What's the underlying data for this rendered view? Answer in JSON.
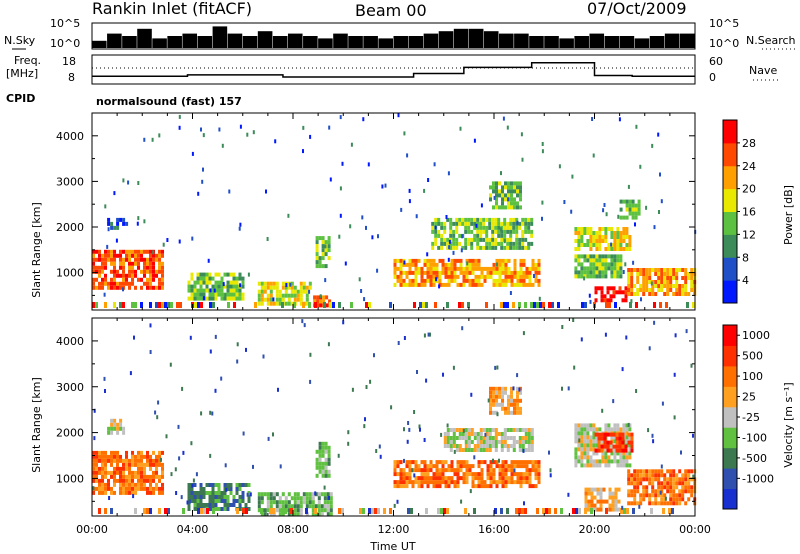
{
  "header": {
    "station": "Rankin Inlet (fitACF)",
    "beam": "Beam 00",
    "date": "07/Oct/2009"
  },
  "sky_panel": {
    "left_label": "N.Sky",
    "left_ticks": [
      "10^5",
      "10^0"
    ],
    "right_ticks": [
      "10^5",
      "10^0"
    ],
    "right_label": "N.Search",
    "values": [
      0.3,
      0.6,
      0.5,
      0.8,
      0.4,
      0.5,
      0.6,
      0.5,
      0.9,
      0.6,
      0.5,
      0.7,
      0.5,
      0.6,
      0.5,
      0.4,
      0.6,
      0.5,
      0.5,
      0.4,
      0.5,
      0.5,
      0.6,
      0.7,
      0.8,
      0.8,
      0.7,
      0.6,
      0.6,
      0.5,
      0.5,
      0.4,
      0.5,
      0.6,
      0.5,
      0.5,
      0.4,
      0.5,
      0.6,
      0.6
    ]
  },
  "freq_panel": {
    "left_label": "Freq.",
    "left_unit": "[MHz]",
    "left_ticks": [
      "18",
      "8"
    ],
    "right_ticks": [
      "60",
      "0"
    ],
    "right_label": "Nave",
    "cpid_label": "CPID",
    "cpid_text": "normalsound (fast) 157",
    "freq_steps": [
      [
        0,
        10.5
      ],
      [
        3.8,
        11.0
      ],
      [
        7.6,
        10.2
      ],
      [
        12.8,
        11.5
      ],
      [
        14.8,
        13.8
      ],
      [
        17.5,
        15.5
      ],
      [
        20,
        10.8
      ],
      [
        21.5,
        10.5
      ]
    ]
  },
  "chart_data": [
    {
      "type": "heatmap",
      "name": "power",
      "ylabel": "Slant Range [km]",
      "yticks": [
        "1000",
        "2000",
        "3000",
        "4000"
      ],
      "ylim": [
        180,
        4500
      ],
      "xlim": [
        0,
        24
      ],
      "colorbar_label": "Power [dB]",
      "colorbar_ticks": [
        "4",
        "8",
        "12",
        "16",
        "20",
        "24",
        "28"
      ],
      "colors": [
        "#0018ff",
        "#2050c8",
        "#3c8c5a",
        "#5cc040",
        "#e8e800",
        "#ffa000",
        "#ff4800",
        "#ff0000"
      ],
      "features": [
        {
          "t0": 0.0,
          "t1": 2.8,
          "r0": 700,
          "r1": 1500,
          "i": 6
        },
        {
          "t0": 0.6,
          "t1": 1.4,
          "r0": 2000,
          "r1": 2200,
          "i": 1
        },
        {
          "t0": 3.8,
          "t1": 6.0,
          "r0": 400,
          "r1": 1000,
          "i": 3
        },
        {
          "t0": 6.6,
          "t1": 8.7,
          "r0": 300,
          "r1": 800,
          "i": 4
        },
        {
          "t0": 8.8,
          "t1": 9.5,
          "r0": 300,
          "r1": 500,
          "i": 6
        },
        {
          "t0": 8.9,
          "t1": 9.4,
          "r0": 1100,
          "r1": 1800,
          "i": 3
        },
        {
          "t0": 12.0,
          "t1": 17.8,
          "r0": 700,
          "r1": 1300,
          "i": 5
        },
        {
          "t0": 13.5,
          "t1": 17.5,
          "r0": 1500,
          "r1": 2200,
          "i": 3
        },
        {
          "t0": 15.8,
          "t1": 17.0,
          "r0": 2400,
          "r1": 3000,
          "i": 3
        },
        {
          "t0": 19.2,
          "t1": 21.4,
          "r0": 1500,
          "r1": 2000,
          "i": 4
        },
        {
          "t0": 19.2,
          "t1": 21.0,
          "r0": 900,
          "r1": 1400,
          "i": 3
        },
        {
          "t0": 20.0,
          "t1": 21.2,
          "r0": 350,
          "r1": 700,
          "i": 7
        },
        {
          "t0": 21.3,
          "t1": 24.0,
          "r0": 500,
          "r1": 1100,
          "i": 5
        },
        {
          "t0": 21.0,
          "t1": 21.8,
          "r0": 2200,
          "r1": 2600,
          "i": 3
        }
      ]
    },
    {
      "type": "heatmap",
      "name": "velocity",
      "ylabel": "Slant Range [km]",
      "yticks": [
        "1000",
        "2000",
        "3000",
        "4000"
      ],
      "ylim": [
        180,
        4500
      ],
      "xlim": [
        0,
        24
      ],
      "xlabel": "Time UT",
      "xticks": [
        "00:00",
        "04:00",
        "08:00",
        "12:00",
        "16:00",
        "20:00",
        "00:00"
      ],
      "colorbar_label": "Velocity [m s⁻¹]",
      "colorbar_ticks": [
        "1000",
        "500",
        "100",
        "25",
        "-25",
        "-100",
        "-500",
        "-1000"
      ],
      "colors": [
        "#1830d0",
        "#3050b0",
        "#3c7850",
        "#60c040",
        "#c0c0c0",
        "#ffa020",
        "#ff7000",
        "#ff3000",
        "#ff0000"
      ],
      "features": [
        {
          "t0": 0.0,
          "t1": 2.8,
          "r0": 700,
          "r1": 1600,
          "i": 6
        },
        {
          "t0": 0.6,
          "t1": 1.2,
          "r0": 2000,
          "r1": 2300,
          "i": 4
        },
        {
          "t0": 3.8,
          "t1": 6.2,
          "r0": 300,
          "r1": 900,
          "i": 2
        },
        {
          "t0": 6.6,
          "t1": 9.5,
          "r0": 250,
          "r1": 700,
          "i": 3
        },
        {
          "t0": 8.9,
          "t1": 9.4,
          "r0": 1100,
          "r1": 1800,
          "i": 3
        },
        {
          "t0": 12.0,
          "t1": 17.8,
          "r0": 800,
          "r1": 1400,
          "i": 6
        },
        {
          "t0": 14.0,
          "t1": 17.5,
          "r0": 1600,
          "r1": 2100,
          "i": 4
        },
        {
          "t0": 15.8,
          "t1": 17.0,
          "r0": 2400,
          "r1": 3000,
          "i": 5
        },
        {
          "t0": 19.2,
          "t1": 21.4,
          "r0": 1300,
          "r1": 2200,
          "i": 4
        },
        {
          "t0": 20.0,
          "t1": 21.5,
          "r0": 1600,
          "r1": 2000,
          "i": 7
        },
        {
          "t0": 21.3,
          "t1": 24.0,
          "r0": 500,
          "r1": 1200,
          "i": 6
        },
        {
          "t0": 19.6,
          "t1": 21.0,
          "r0": 350,
          "r1": 800,
          "i": 5
        }
      ]
    }
  ]
}
